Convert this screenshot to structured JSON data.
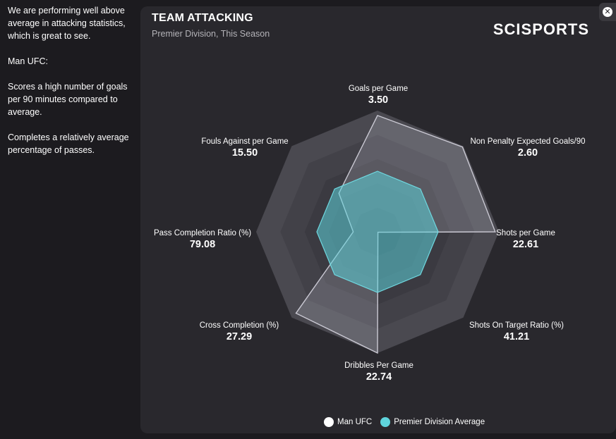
{
  "sidebar": {
    "paragraphs": [
      "We are performing well above average in attacking statistics, which is great to see.",
      "Man UFC:",
      "Scores a high number of goals per 90 minutes compared to average.",
      "Completes a relatively average percentage of passes."
    ]
  },
  "header": {
    "title": "TEAM ATTACKING",
    "subtitle": "Premier Division, This Season",
    "logo_text": "SCISPORTS"
  },
  "close_icon": "close-icon",
  "chart_data": {
    "type": "radar",
    "axes": [
      {
        "name": "Goals per Game",
        "value": "3.50"
      },
      {
        "name": "Non Penalty Expected Goals/90",
        "value": "2.60"
      },
      {
        "name": "Shots per Game",
        "value": "22.61"
      },
      {
        "name": "Shots On Target Ratio (%)",
        "value": "41.21"
      },
      {
        "name": "Dribbles Per Game",
        "value": "22.74"
      },
      {
        "name": "Cross Completion (%)",
        "value": "27.29"
      },
      {
        "name": "Pass Completion Ratio (%)",
        "value": "79.08"
      },
      {
        "name": "Fouls Against per Game",
        "value": "15.50"
      }
    ],
    "rings": 5,
    "series": [
      {
        "name": "Man UFC",
        "color": "#ffffff",
        "relative": [
          0.96,
          0.99,
          0.97,
          0.0,
          1.0,
          0.95,
          0.2,
          0.45
        ]
      },
      {
        "name": "Premier Division Average",
        "color": "#5fd4dc",
        "relative": [
          0.5,
          0.5,
          0.5,
          0.5,
          0.5,
          0.5,
          0.5,
          0.5
        ]
      }
    ],
    "legend_position": "bottom"
  }
}
